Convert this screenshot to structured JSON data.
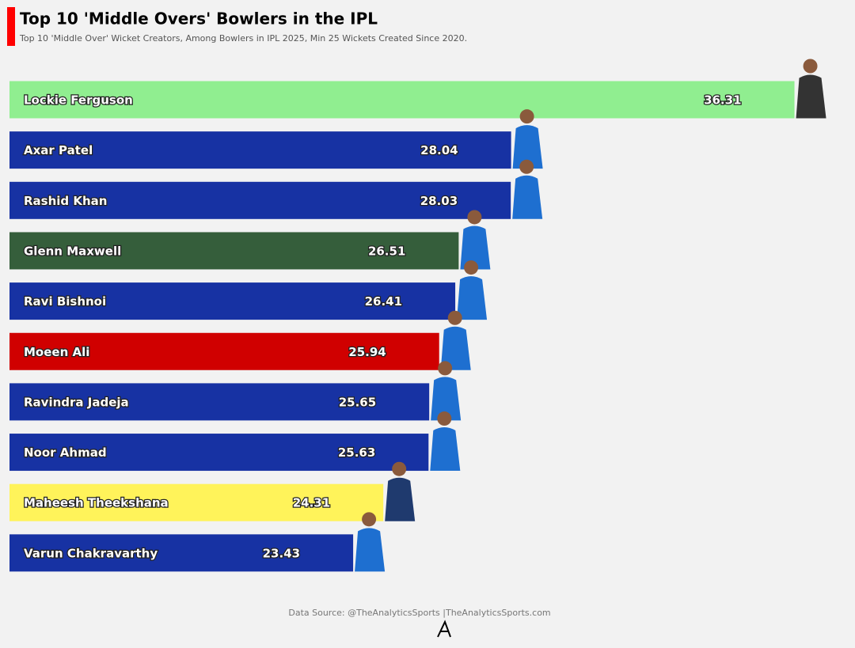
{
  "chart_data": {
    "type": "bar",
    "orientation": "horizontal",
    "title": "Top 10 'Middle Overs' Bowlers in the IPL",
    "subtitle": "Top 10 'Middle Over' Wicket Creators, Among Bowlers in IPL 2025, Min 25 Wickets Created Since 2020.",
    "categories": [
      "Lockie Ferguson",
      "Axar Patel",
      "Rashid Khan",
      "Glenn Maxwell",
      "Ravi Bishnoi",
      "Moeen Ali",
      "Ravindra Jadeja",
      "Noor Ahmad",
      "Maheesh Theekshana",
      "Varun Chakravarthy"
    ],
    "values": [
      36.31,
      28.04,
      28.03,
      26.51,
      26.41,
      25.94,
      25.65,
      25.63,
      24.31,
      23.43
    ],
    "colors": [
      "#90ee90",
      "#1732a3",
      "#1732a3",
      "#355e3b",
      "#1732a3",
      "#d00000",
      "#1732a3",
      "#1732a3",
      "#fff35a",
      "#1732a3"
    ],
    "xlim": [
      13.4,
      38.1
    ],
    "source": "Data Source: @TheAnalyticsSports |TheAnalyticsSports.com"
  }
}
